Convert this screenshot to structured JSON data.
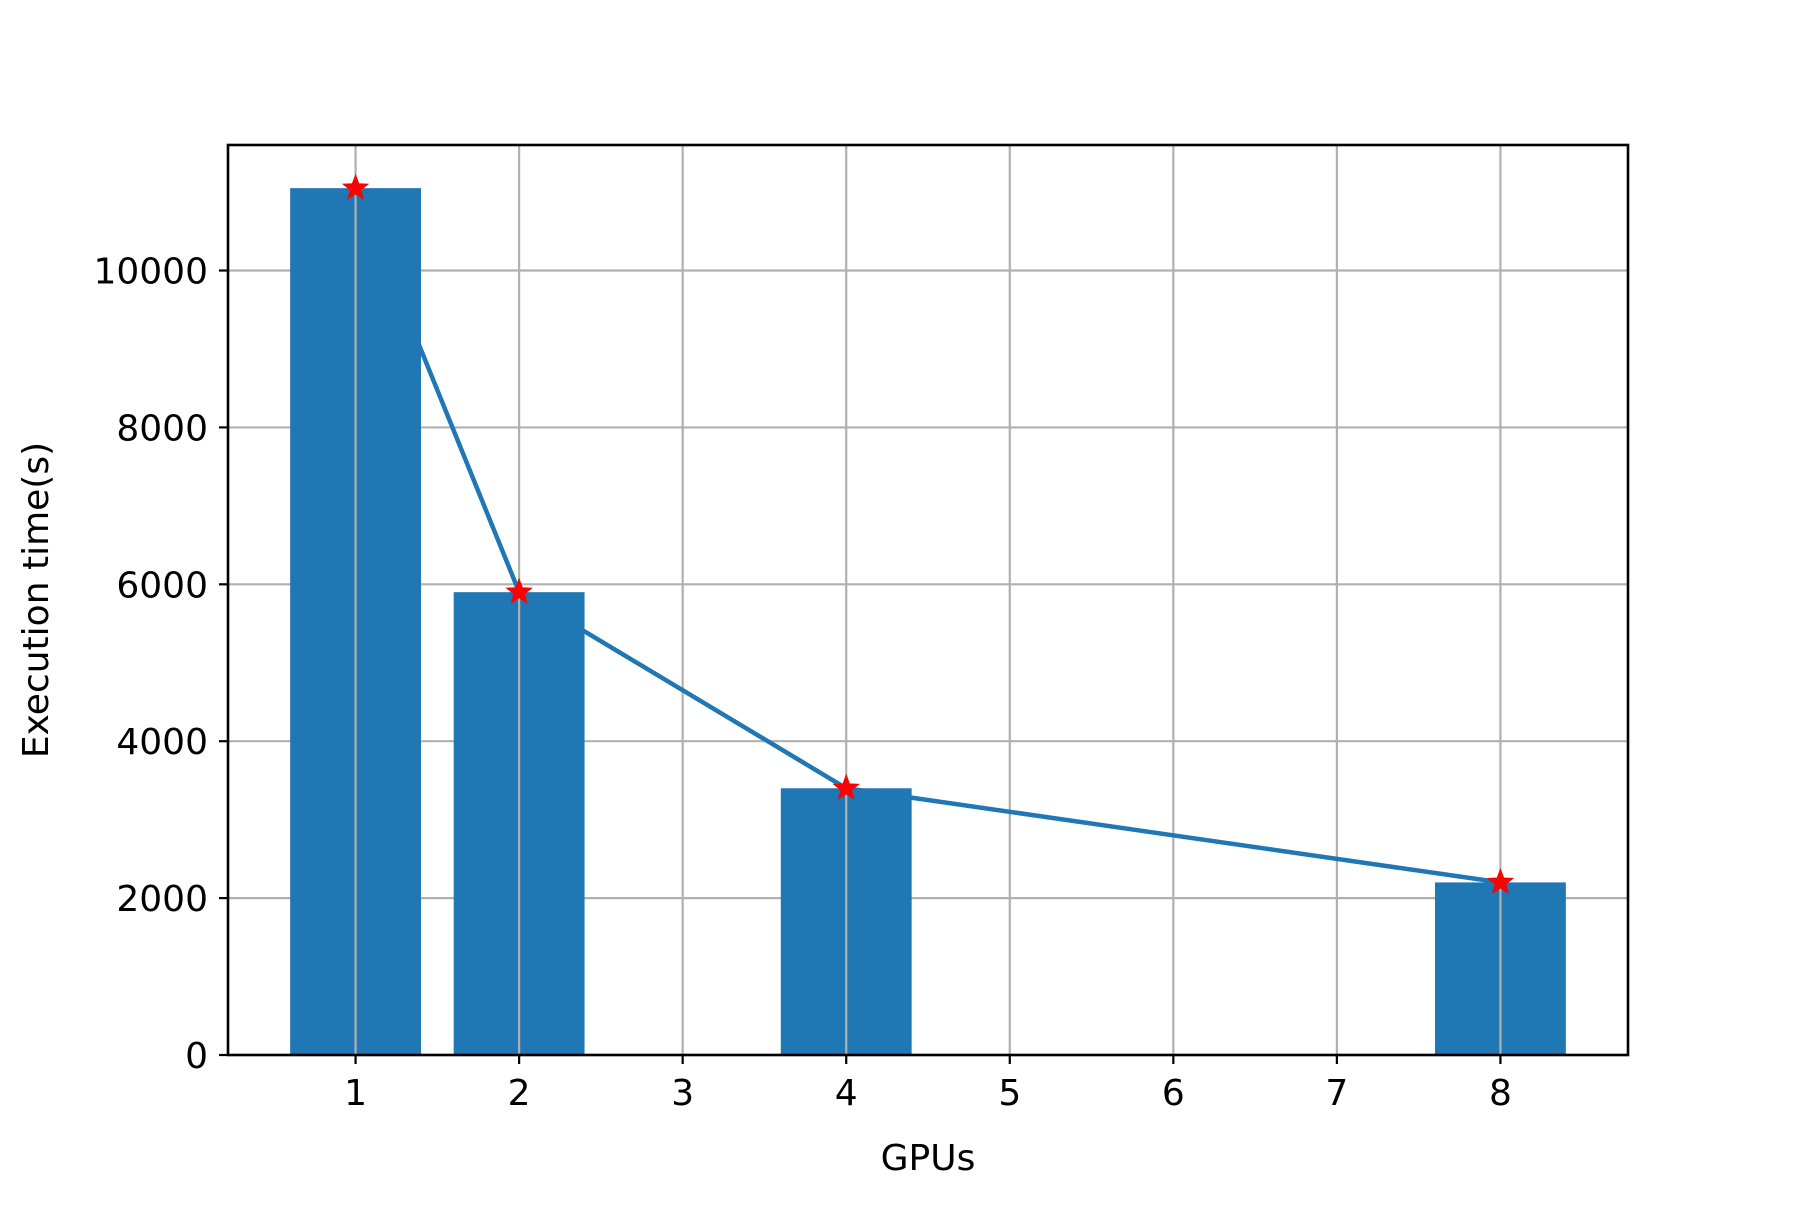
{
  "chart_data": {
    "type": "bar",
    "title": "",
    "xlabel": "GPUs",
    "ylabel": "Execution time(s)",
    "x_ticks": [
      1,
      2,
      3,
      4,
      5,
      6,
      7,
      8
    ],
    "y_ticks": [
      0,
      2000,
      4000,
      6000,
      8000,
      10000
    ],
    "xlim": [
      0.22,
      8.78
    ],
    "ylim": [
      0,
      11600
    ],
    "grid": true,
    "bar_color": "#1f77b4",
    "line_color": "#1f77b4",
    "marker_color": "#ff0000",
    "marker": "star",
    "x": [
      1,
      2,
      4,
      8
    ],
    "values": [
      11050,
      5900,
      3400,
      2200
    ]
  }
}
